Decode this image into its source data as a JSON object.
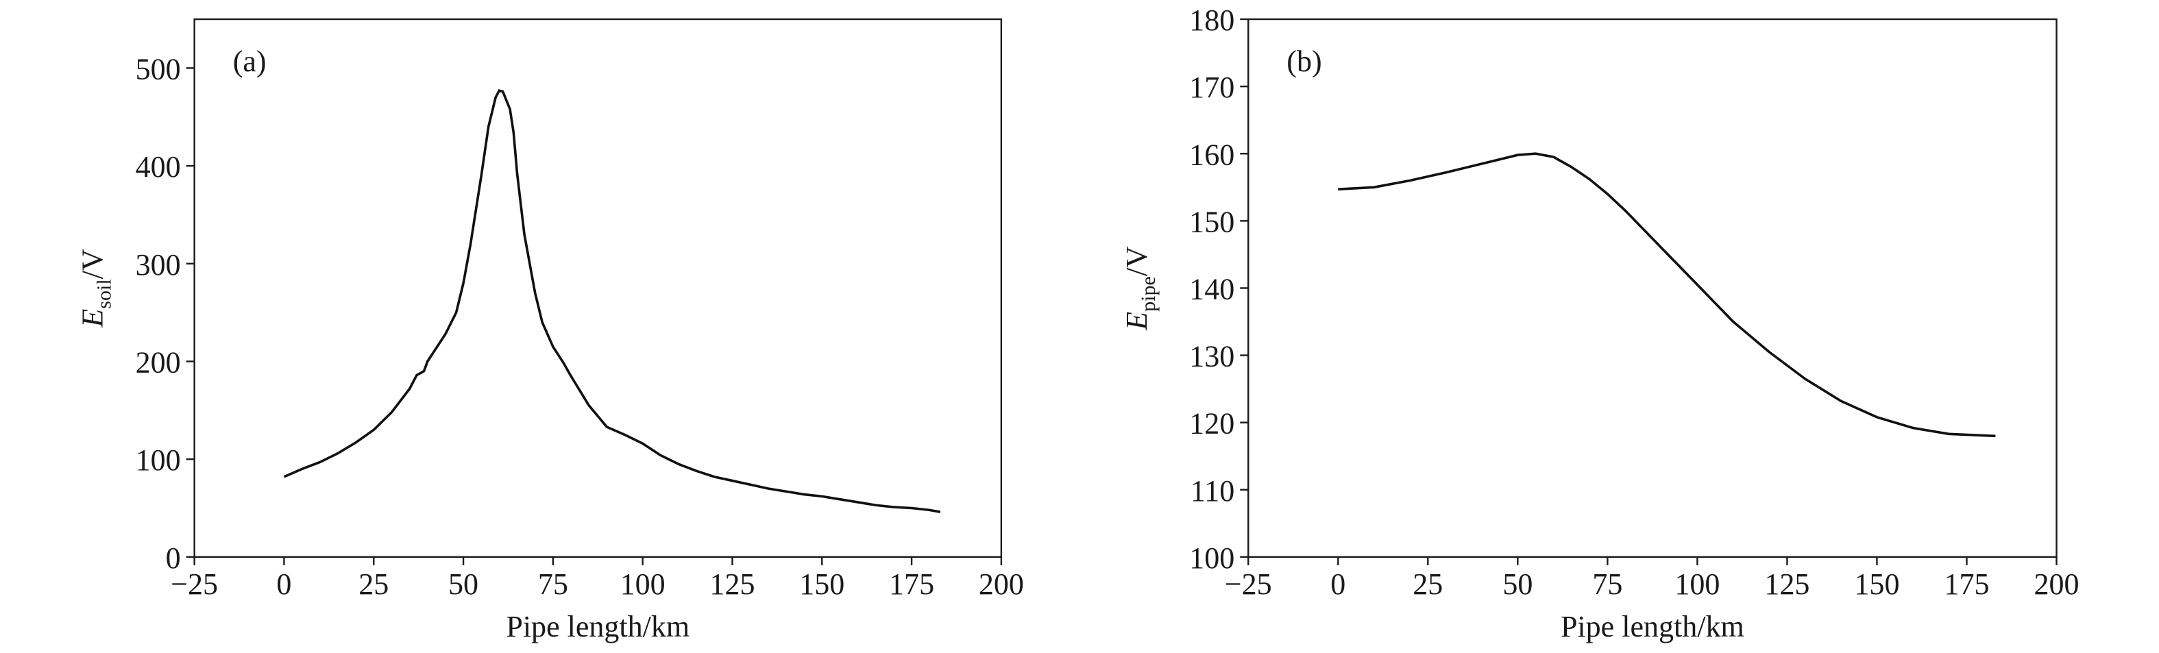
{
  "chart_data": [
    {
      "type": "line",
      "panel": "(a)",
      "xlabel": "Pipe length/km",
      "ylabel": {
        "symbol": "E",
        "subscript": "soil",
        "unit": "/V"
      },
      "xlim": [
        -25,
        200
      ],
      "ylim": [
        0,
        550
      ],
      "xticks": [
        {
          "value": -25,
          "label": "−25"
        },
        0,
        25,
        50,
        75,
        100,
        125,
        150,
        175,
        200
      ],
      "yticks": [
        0,
        100,
        200,
        300,
        400,
        500
      ],
      "x": [
        0,
        5,
        10,
        15,
        20,
        25,
        30,
        35,
        37,
        39,
        40,
        45,
        48,
        50,
        52,
        55,
        57,
        59,
        60,
        61,
        63,
        64,
        65,
        67,
        70,
        72,
        75,
        78,
        80,
        85,
        90,
        95,
        100,
        105,
        110,
        115,
        120,
        125,
        130,
        135,
        140,
        145,
        150,
        155,
        160,
        165,
        170,
        175,
        180,
        183
      ],
      "series": [
        {
          "color": "#111111",
          "values": [
            82,
            90,
            97,
            106,
            117,
            130,
            148,
            172,
            186,
            190,
            200,
            228,
            250,
            280,
            320,
            390,
            440,
            470,
            477,
            476,
            458,
            434,
            392,
            330,
            270,
            240,
            215,
            198,
            185,
            155,
            133,
            125,
            116,
            104,
            95,
            88,
            82,
            78,
            74,
            70,
            67,
            64,
            62,
            59,
            56,
            53,
            51,
            50,
            48,
            46
          ]
        }
      ]
    },
    {
      "type": "line",
      "panel": "(b)",
      "xlabel": "Pipe length/km",
      "ylabel": {
        "symbol": "E",
        "subscript": "pipe",
        "unit": "/V"
      },
      "xlim": [
        -25,
        200
      ],
      "ylim": [
        100,
        180
      ],
      "xticks": [
        {
          "value": -25,
          "label": "−25"
        },
        0,
        25,
        50,
        75,
        100,
        125,
        150,
        175,
        200
      ],
      "yticks": [
        100,
        110,
        120,
        130,
        140,
        150,
        160,
        170,
        180
      ],
      "x": [
        0,
        10,
        20,
        30,
        40,
        50,
        55,
        60,
        65,
        70,
        75,
        80,
        90,
        100,
        110,
        120,
        130,
        140,
        150,
        160,
        170,
        183
      ],
      "series": [
        {
          "color": "#111111",
          "values": [
            154.7,
            155,
            156,
            157.2,
            158.5,
            159.8,
            160,
            159.5,
            158,
            156.2,
            154,
            151.5,
            146,
            140.5,
            135,
            130.5,
            126.5,
            123.2,
            120.8,
            119.2,
            118.3,
            118
          ]
        }
      ]
    }
  ]
}
